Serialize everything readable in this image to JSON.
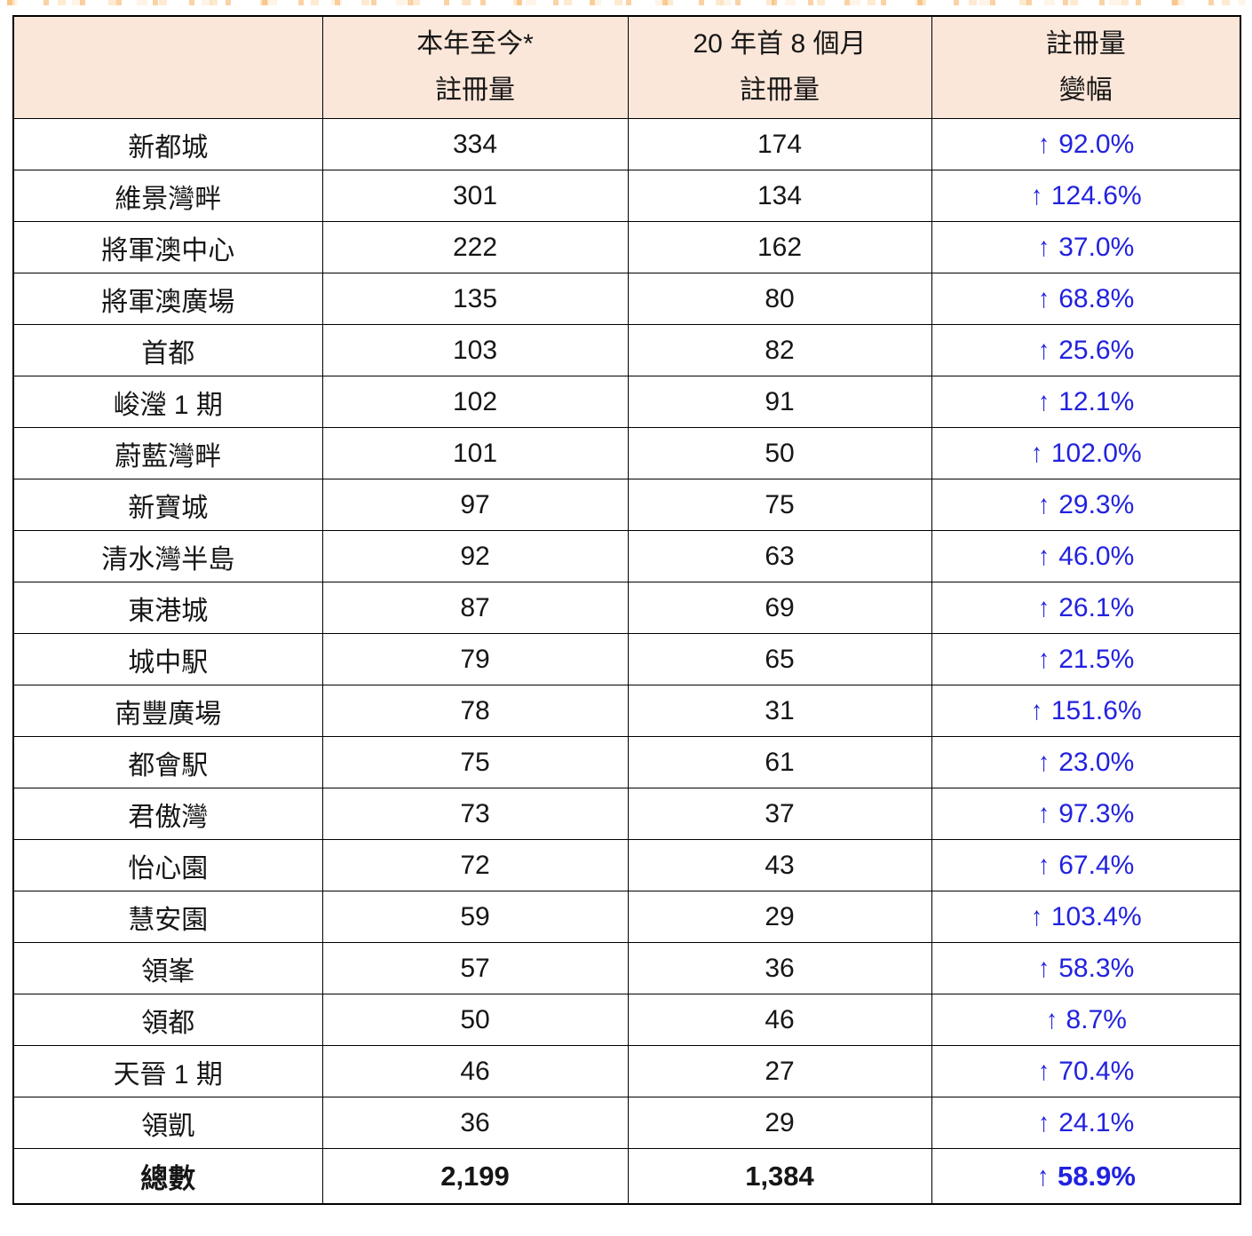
{
  "artifact_strip": {
    "description": "bottom sliver of a cropped highlighted text line",
    "colors": [
      "#F6A649",
      "#FAD196",
      "#FCE3C3"
    ]
  },
  "table": {
    "header_bg": "#FBE7D9",
    "change_color": "#2222DF",
    "border_color": "#000000",
    "header": {
      "estate_label": "",
      "ytd_line1": "本年至今*",
      "ytd_line2": "註冊量",
      "prior_line1": "20 年首 8 個月",
      "prior_line2": "註冊量",
      "change_line1": "註冊量",
      "change_line2": "變幅"
    },
    "rows": [
      {
        "name": "新都城",
        "ytd": "334",
        "prior": "174",
        "arrow": "↑",
        "change": "92.0%",
        "total": false
      },
      {
        "name": "維景灣畔",
        "ytd": "301",
        "prior": "134",
        "arrow": "↑",
        "change": "124.6%",
        "total": false
      },
      {
        "name": "將軍澳中心",
        "ytd": "222",
        "prior": "162",
        "arrow": "↑",
        "change": "37.0%",
        "total": false
      },
      {
        "name": "將軍澳廣場",
        "ytd": "135",
        "prior": "80",
        "arrow": "↑",
        "change": "68.8%",
        "total": false
      },
      {
        "name": "首都",
        "ytd": "103",
        "prior": "82",
        "arrow": "↑",
        "change": "25.6%",
        "total": false
      },
      {
        "name": "峻瀅 1 期",
        "ytd": "102",
        "prior": "91",
        "arrow": "↑",
        "change": "12.1%",
        "total": false
      },
      {
        "name": "蔚藍灣畔",
        "ytd": "101",
        "prior": "50",
        "arrow": "↑",
        "change": "102.0%",
        "total": false
      },
      {
        "name": "新寶城",
        "ytd": "97",
        "prior": "75",
        "arrow": "↑",
        "change": "29.3%",
        "total": false
      },
      {
        "name": "清水灣半島",
        "ytd": "92",
        "prior": "63",
        "arrow": "↑",
        "change": "46.0%",
        "total": false
      },
      {
        "name": "東港城",
        "ytd": "87",
        "prior": "69",
        "arrow": "↑",
        "change": "26.1%",
        "total": false
      },
      {
        "name": "城中駅",
        "ytd": "79",
        "prior": "65",
        "arrow": "↑",
        "change": "21.5%",
        "total": false
      },
      {
        "name": "南豐廣場",
        "ytd": "78",
        "prior": "31",
        "arrow": "↑",
        "change": "151.6%",
        "total": false
      },
      {
        "name": "都會駅",
        "ytd": "75",
        "prior": "61",
        "arrow": "↑",
        "change": "23.0%",
        "total": false
      },
      {
        "name": "君傲灣",
        "ytd": "73",
        "prior": "37",
        "arrow": "↑",
        "change": "97.3%",
        "total": false
      },
      {
        "name": "怡心園",
        "ytd": "72",
        "prior": "43",
        "arrow": "↑",
        "change": "67.4%",
        "total": false
      },
      {
        "name": "慧安園",
        "ytd": "59",
        "prior": "29",
        "arrow": "↑",
        "change": "103.4%",
        "total": false
      },
      {
        "name": "領峯",
        "ytd": "57",
        "prior": "36",
        "arrow": "↑",
        "change": "58.3%",
        "total": false
      },
      {
        "name": "領都",
        "ytd": "50",
        "prior": "46",
        "arrow": "↑",
        "change": "8.7%",
        "total": false
      },
      {
        "name": "天晉 1 期",
        "ytd": "46",
        "prior": "27",
        "arrow": "↑",
        "change": "70.4%",
        "total": false
      },
      {
        "name": "領凱",
        "ytd": "36",
        "prior": "29",
        "arrow": "↑",
        "change": "24.1%",
        "total": false
      },
      {
        "name": "總數",
        "ytd": "2,199",
        "prior": "1,384",
        "arrow": "↑",
        "change": "58.9%",
        "total": true
      }
    ]
  }
}
